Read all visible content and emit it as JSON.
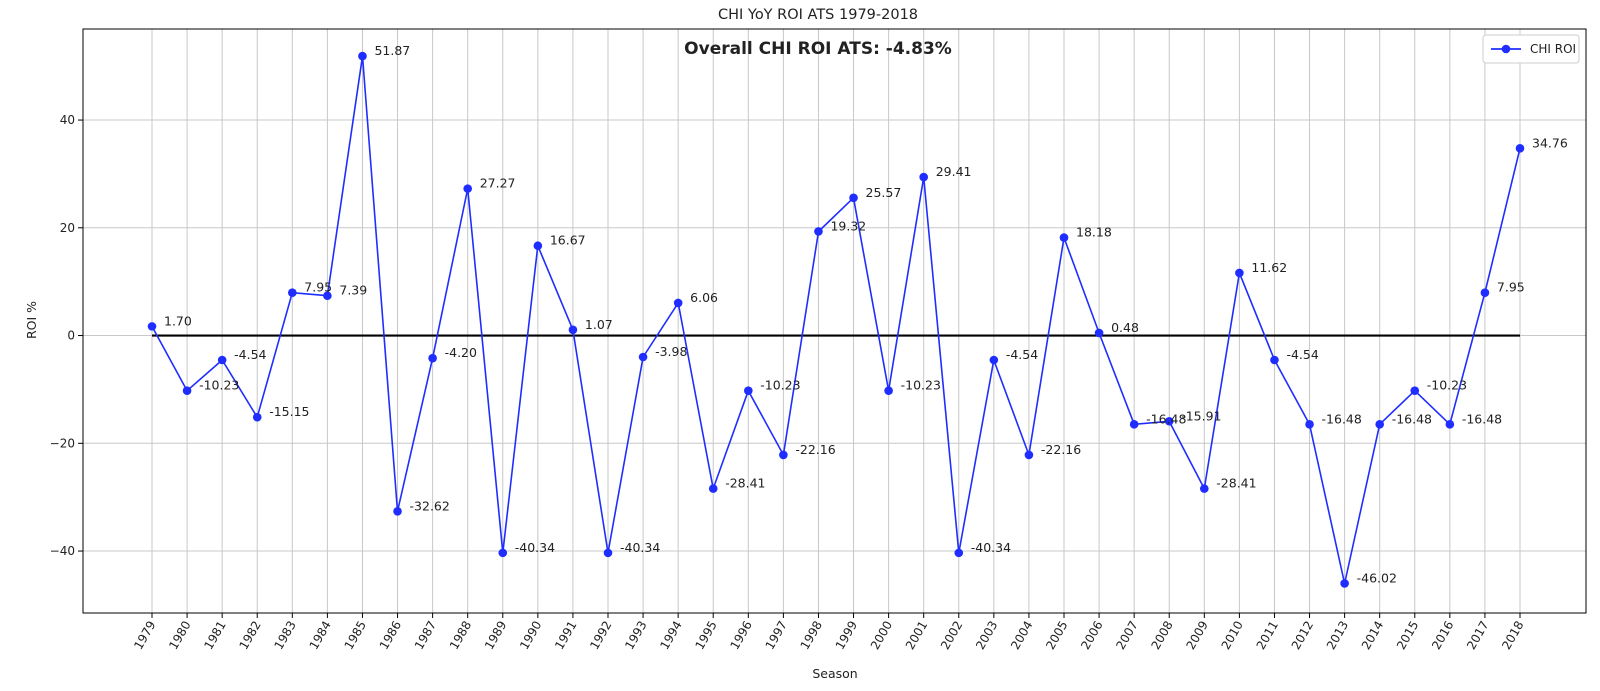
{
  "chart_data": {
    "type": "line",
    "title": "CHI YoY ROI ATS 1979-2018",
    "annotation": "Overall CHI ROI ATS: -4.83%",
    "xlabel": "Season",
    "ylabel": "ROI %",
    "ylim": [
      -51.5,
      56.9
    ],
    "yticks": [
      -40,
      -20,
      0,
      20,
      40
    ],
    "grid": true,
    "legend_position": "top-right",
    "reference_line": 0,
    "categories": [
      "1979",
      "1980",
      "1981",
      "1982",
      "1983",
      "1984",
      "1985",
      "1986",
      "1987",
      "1988",
      "1989",
      "1990",
      "1991",
      "1992",
      "1993",
      "1994",
      "1995",
      "1996",
      "1997",
      "1998",
      "1999",
      "2000",
      "2001",
      "2002",
      "2003",
      "2004",
      "2005",
      "2006",
      "2007",
      "2008",
      "2009",
      "2010",
      "2011",
      "2012",
      "2013",
      "2014",
      "2015",
      "2016",
      "2017",
      "2018"
    ],
    "series": [
      {
        "name": "CHI ROI",
        "color": "#1f2eff",
        "values": [
          1.7,
          -10.23,
          -4.54,
          -15.15,
          7.95,
          7.39,
          51.87,
          -32.62,
          -4.2,
          27.27,
          -40.34,
          16.67,
          1.07,
          -40.34,
          -3.98,
          6.06,
          -28.41,
          -10.23,
          -22.16,
          19.32,
          25.57,
          -10.23,
          29.41,
          -40.34,
          -4.54,
          -22.16,
          18.18,
          0.48,
          -16.48,
          -15.91,
          -28.41,
          11.62,
          -4.54,
          -16.48,
          -46.02,
          -16.48,
          -10.23,
          -16.48,
          7.95,
          34.76
        ],
        "labels": [
          "1.70",
          "-10.23",
          "-4.54",
          "-15.15",
          "7.95",
          "7.39",
          "51.87",
          "-32.62",
          "-4.20",
          "27.27",
          "-40.34",
          "16.67",
          "1.07",
          "-40.34",
          "-3.98",
          "6.06",
          "-28.41",
          "-10.23",
          "-22.16",
          "19.32",
          "25.57",
          "-10.23",
          "29.41",
          "-40.34",
          "-4.54",
          "-22.16",
          "18.18",
          "0.48",
          "-16.48",
          "-15.91",
          "-28.41",
          "11.62",
          "-4.54",
          "-16.48",
          "-46.02",
          "-16.48",
          "-10.23",
          "-16.48",
          "7.95",
          "34.76"
        ]
      }
    ]
  }
}
